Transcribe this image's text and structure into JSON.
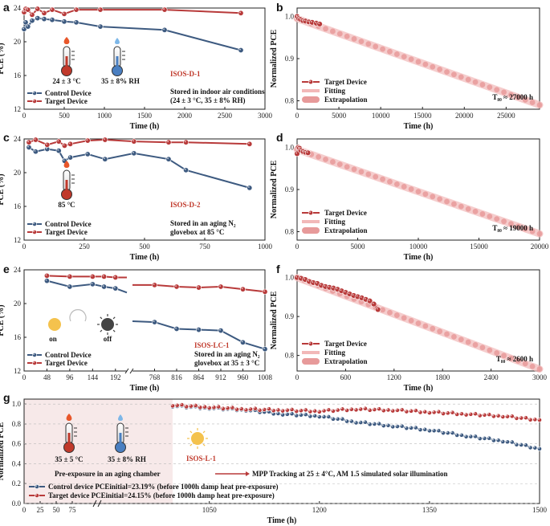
{
  "colors": {
    "control": "#3d5a80",
    "target": "#b83a3a",
    "fit": "#f2b8b8",
    "extrap": "#e79a9a"
  },
  "chart_data": [
    {
      "id": "a",
      "type": "line",
      "panel_label": "a",
      "xlabel": "Time (h)",
      "ylabel": "PCE (%)",
      "xlim": [
        0,
        3000
      ],
      "ylim": [
        12,
        24
      ],
      "xticks": [
        "0",
        "500",
        "1000",
        "1500",
        "2000",
        "2500",
        "3000"
      ],
      "yticks": [
        "12",
        "16",
        "20",
        "24"
      ],
      "series": [
        {
          "name": "Control Device",
          "x": [
            0,
            20,
            48,
            100,
            168,
            250,
            350,
            500,
            650,
            950,
            1750,
            2700
          ],
          "values": [
            21.5,
            22.3,
            21.8,
            22.5,
            22.8,
            22.7,
            22.6,
            22.4,
            22.3,
            21.8,
            21.4,
            19.0
          ]
        },
        {
          "name": "Target Device",
          "x": [
            0,
            20,
            48,
            100,
            168,
            250,
            350,
            500,
            650,
            950,
            1750,
            2700
          ],
          "values": [
            23.5,
            23.9,
            23.8,
            23.2,
            23.9,
            23.4,
            23.8,
            23.3,
            23.8,
            23.8,
            23.8,
            23.4
          ]
        }
      ],
      "annotations": {
        "iso": "ISOS-D-1",
        "cond1": "24 ± 3 °C",
        "cond2": "35 ± 8% RH",
        "note1": "Stored in indoor air conditions",
        "note2": "(24 ± 3 °C, 35 ± 8% RH)"
      }
    },
    {
      "id": "b",
      "type": "line",
      "panel_label": "b",
      "xlabel": "Time (h)",
      "ylabel": "Normalized PCE",
      "xlim": [
        0,
        29000
      ],
      "ylim": [
        0.78,
        1.02
      ],
      "xticks": [
        "0",
        "5000",
        "10000",
        "15000",
        "20000",
        "25000"
      ],
      "xtickvals": [
        0,
        5000,
        10000,
        15000,
        20000,
        25000
      ],
      "yticks": [
        "0.8",
        "0.9",
        "1.0"
      ],
      "data_x": [
        0,
        200,
        400,
        700,
        1000,
        1400,
        1800,
        2300,
        2700
      ],
      "data_y": [
        1.0,
        0.995,
        0.993,
        0.99,
        0.989,
        0.987,
        0.986,
        0.984,
        0.982
      ],
      "fit": [
        [
          0,
          0.995
        ],
        [
          29000,
          0.79
        ]
      ],
      "legend": [
        "Target Device",
        "Fitting",
        "Extrapolation"
      ],
      "t80": "T₈₀ ≈ 27000 h"
    },
    {
      "id": "c",
      "type": "line",
      "panel_label": "c",
      "xlabel": "Time (h)",
      "ylabel": "PCE (%)",
      "xlim": [
        0,
        1000
      ],
      "ylim": [
        12,
        24
      ],
      "xticks": [
        "0",
        "250",
        "500",
        "750",
        "1000"
      ],
      "yticks": [
        "12",
        "16",
        "20",
        "24"
      ],
      "series": [
        {
          "name": "Control Device",
          "x": [
            20,
            48,
            96,
            144,
            168,
            192,
            264,
            336,
            456,
            600,
            672,
            936
          ],
          "values": [
            23.0,
            22.5,
            22.8,
            22.6,
            21.4,
            21.8,
            22.2,
            21.6,
            22.3,
            21.6,
            20.3,
            18.2
          ]
        },
        {
          "name": "Target Device",
          "x": [
            20,
            48,
            96,
            144,
            168,
            192,
            264,
            336,
            456,
            600,
            672,
            936
          ],
          "values": [
            23.6,
            23.9,
            23.3,
            23.7,
            23.2,
            23.4,
            23.8,
            23.9,
            23.7,
            23.6,
            23.6,
            23.4
          ]
        }
      ],
      "annotations": {
        "iso": "ISOS-D-2",
        "cond1": "85 °C",
        "note1": "Stored in an aging N₂",
        "note2": "glovebox at 85 °C"
      }
    },
    {
      "id": "d",
      "type": "line",
      "panel_label": "d",
      "xlabel": "Time (h)",
      "ylabel": "Normalized PCE",
      "xlim": [
        0,
        20000
      ],
      "ylim": [
        0.78,
        1.02
      ],
      "xticks": [
        "0",
        "5000",
        "10000",
        "15000",
        "20000"
      ],
      "xtickvals": [
        0,
        5000,
        10000,
        15000,
        20000
      ],
      "yticks": [
        "0.8",
        "0.9",
        "1.0"
      ],
      "data_x": [
        0,
        100,
        200,
        300,
        500,
        700,
        900
      ],
      "data_y": [
        0.985,
        1.0,
        0.998,
        0.993,
        0.99,
        0.988,
        0.987
      ],
      "fit": [
        [
          0,
          0.995
        ],
        [
          20000,
          0.795
        ]
      ],
      "legend": [
        "Target Device",
        "Fitting",
        "Extrapolation"
      ],
      "t80": "T₈₀ ≈ 19000 h"
    },
    {
      "id": "e",
      "type": "line",
      "panel_label": "e",
      "xlabel": "Time (h)",
      "ylabel": "PCE (%)",
      "ylim": [
        12,
        24
      ],
      "xticks": [
        "0",
        "48",
        "96",
        "144",
        "192",
        "768",
        "816",
        "864",
        "912",
        "960",
        "1008"
      ],
      "yticks": [
        "12",
        "16",
        "20",
        "24"
      ],
      "series": [
        {
          "name": "Control Device",
          "x": [
            48,
            96,
            144,
            168,
            192,
            216,
            720,
            768,
            816,
            864,
            912,
            960,
            1008
          ],
          "values": [
            22.7,
            22.0,
            22.3,
            22.0,
            21.8,
            21.3,
            17.9,
            17.8,
            17.0,
            16.9,
            16.8,
            15.4,
            14.6
          ]
        },
        {
          "name": "Target Device",
          "x": [
            48,
            96,
            144,
            168,
            192,
            216,
            720,
            768,
            816,
            864,
            912,
            960,
            1008
          ],
          "values": [
            23.3,
            23.2,
            23.2,
            23.2,
            23.1,
            23.1,
            22.2,
            22.2,
            22.0,
            21.9,
            22.0,
            21.7,
            21.4
          ]
        }
      ],
      "annotations": {
        "iso": "ISOS-LC-1",
        "on": "on",
        "off": "off",
        "note1": "Stored in an aging N₂",
        "note2": "glovebox at 35 ± 3 °C"
      }
    },
    {
      "id": "f",
      "type": "line",
      "panel_label": "f",
      "xlabel": "Time (h)",
      "ylabel": "Normalized PCE",
      "xlim": [
        0,
        3000
      ],
      "ylim": [
        0.76,
        1.02
      ],
      "xticks": [
        "0",
        "600",
        "1200",
        "1800",
        "2400",
        "3000"
      ],
      "xtickvals": [
        0,
        600,
        1200,
        1800,
        2400,
        3000
      ],
      "yticks": [
        "0.8",
        "0.9",
        "1.0"
      ],
      "data_x": [
        0,
        50,
        100,
        150,
        200,
        250,
        300,
        350,
        400,
        450,
        500,
        550,
        600,
        650,
        700,
        750,
        800,
        850,
        900,
        950,
        1000
      ],
      "data_y": [
        1.0,
        0.998,
        0.995,
        0.99,
        0.987,
        0.985,
        0.98,
        0.977,
        0.975,
        0.973,
        0.97,
        0.966,
        0.962,
        0.958,
        0.954,
        0.951,
        0.948,
        0.944,
        0.94,
        0.932,
        0.918
      ],
      "fit": [
        [
          0,
          1.0
        ],
        [
          3000,
          0.765
        ]
      ],
      "legend": [
        "Target Device",
        "Fitting",
        "Extrapolation"
      ],
      "t80": "T₈₀ ≈ 2600 h"
    },
    {
      "id": "g",
      "type": "line",
      "panel_label": "g",
      "xlabel": "Time (h)",
      "ylabel": "Normalized PCE",
      "ylim": [
        0,
        1.05
      ],
      "xticks": [
        "0",
        "25",
        "50",
        "75",
        "1050",
        "1200",
        "1350",
        "1500"
      ],
      "yticks": [
        "0.0",
        "0.2",
        "0.4",
        "0.6",
        "0.8",
        "1.0"
      ],
      "series": [
        {
          "name": "Control device",
          "x": [
            1000,
            1050,
            1100,
            1150,
            1200,
            1250,
            1300,
            1350,
            1400,
            1450,
            1500
          ],
          "values": [
            0.98,
            0.96,
            0.94,
            0.9,
            0.88,
            0.82,
            0.78,
            0.74,
            0.68,
            0.63,
            0.55
          ]
        },
        {
          "name": "Target device",
          "x": [
            1000,
            1050,
            1100,
            1150,
            1200,
            1250,
            1300,
            1350,
            1400,
            1450,
            1500
          ],
          "values": [
            0.99,
            0.97,
            0.95,
            0.94,
            0.93,
            0.95,
            0.94,
            0.92,
            0.9,
            0.88,
            0.84
          ]
        }
      ],
      "annotations": {
        "iso": "ISOS-L-1",
        "cond1": "35 ± 5 °C",
        "cond2": "35 ± 8% RH",
        "pre": "Pre-exposure in an aging chamber",
        "mpp": "MPP Tracking at 25 ± 4°C, AM 1.5 simulated solar illumination",
        "legend_control": "Control device   PCEinitial=23.19% (before 1000h damp heat pre-exposure)",
        "legend_target": "Target device   PCEinitial=24.15% (before 1000h damp heat pre-exposure)"
      }
    }
  ]
}
